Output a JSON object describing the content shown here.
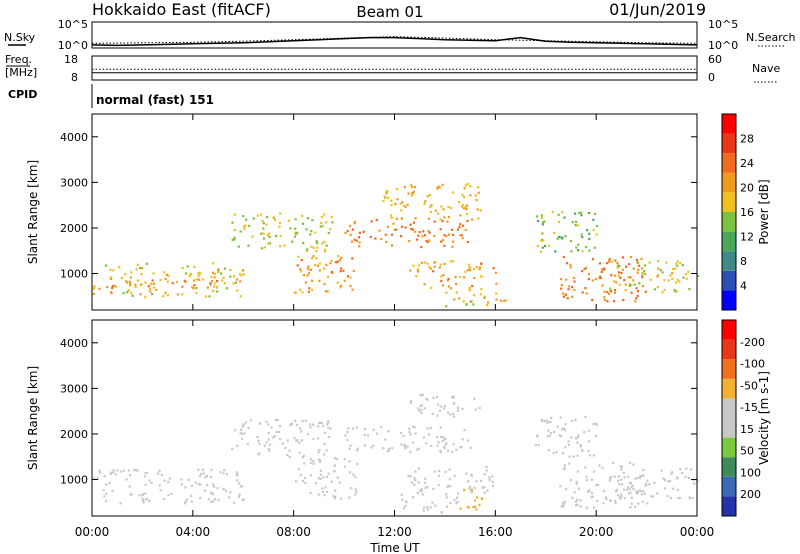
{
  "header": {
    "station": "Hokkaido East (fitACF)",
    "beam": "Beam 01",
    "date": "01/Jun/2019"
  },
  "top_labels": {
    "nsky": "N.Sky",
    "nsearch": "N.Search",
    "freq_line1": "Freq.",
    "freq_line2": "[MHz]",
    "nave": "Nave",
    "cpid": "CPID",
    "noise_tick_top": "10^5",
    "noise_tick_bottom": "10^0",
    "freq_tick_top": "18",
    "freq_tick_bottom": "8",
    "nave_tick_top": "60",
    "nave_tick_bottom": "0",
    "cpid_text": "normal (fast) 151"
  },
  "x_axis": {
    "label": "Time UT",
    "ticks": [
      "00:00",
      "04:00",
      "08:00",
      "12:00",
      "16:00",
      "20:00",
      "00:00"
    ]
  },
  "chart_data": [
    {
      "type": "line",
      "panel": "noise",
      "series": [
        {
          "name": "N.Sky",
          "x_hours": [
            0,
            1,
            2,
            3,
            4,
            5,
            6,
            7,
            8,
            9,
            10,
            11,
            12,
            13,
            14,
            15,
            16,
            17,
            18,
            19,
            20,
            21,
            22,
            23,
            24
          ],
          "values_log10": [
            0.6,
            0.5,
            0.6,
            0.7,
            0.8,
            0.9,
            1.0,
            1.2,
            1.4,
            1.6,
            1.8,
            2.0,
            2.0,
            1.8,
            1.6,
            1.5,
            1.4,
            2.0,
            1.3,
            1.1,
            1.0,
            0.9,
            0.8,
            0.7,
            0.6
          ]
        },
        {
          "name": "N.Search",
          "x_hours": [
            0,
            2,
            4,
            6,
            8,
            10,
            12,
            14,
            16,
            18,
            20,
            22,
            24
          ],
          "values_log10": [
            0.9,
            1.0,
            1.1,
            1.3,
            1.6,
            1.9,
            2.2,
            1.9,
            1.6,
            1.4,
            1.2,
            1.0,
            0.9
          ]
        }
      ],
      "ylim_log10": [
        0,
        5
      ]
    },
    {
      "type": "line",
      "panel": "freq_nave",
      "series": [
        {
          "name": "Freq.",
          "x_hours": [
            0,
            24
          ],
          "values": [
            11,
            11
          ]
        },
        {
          "name": "Nave",
          "x_hours": [
            0,
            24
          ],
          "values": [
            27,
            27
          ]
        }
      ],
      "ylim_freq": [
        8,
        18
      ],
      "ylim_nave": [
        0,
        60
      ]
    },
    {
      "type": "heatmap",
      "panel": "power",
      "xlabel": "",
      "ylabel": "Slant Range [km]",
      "xlim_hours": [
        0,
        24
      ],
      "ylim_km": [
        200,
        4500
      ],
      "yticks": [
        1000,
        2000,
        3000,
        4000
      ],
      "colorbar": {
        "label": "Power [dB]",
        "ticks": [
          4,
          8,
          12,
          16,
          20,
          24,
          28
        ],
        "colors": [
          "#0000ff",
          "#2c4fb3",
          "#3f8a86",
          "#4aa75a",
          "#7bc23f",
          "#f0c020",
          "#f09a20",
          "#f06a20",
          "#e83818",
          "#ff0000"
        ]
      },
      "regions": [
        {
          "t0": 0.0,
          "t1": 6.0,
          "r0": 500,
          "r1": 1250,
          "value": 22
        },
        {
          "t0": 0.5,
          "t1": 5.0,
          "r0": 700,
          "r1": 900,
          "value": 27
        },
        {
          "t0": 5.5,
          "t1": 9.5,
          "r0": 1500,
          "r1": 2350,
          "value": 20
        },
        {
          "t0": 8.0,
          "t1": 10.5,
          "r0": 600,
          "r1": 1500,
          "value": 26
        },
        {
          "t0": 10.0,
          "t1": 15.0,
          "r0": 1600,
          "r1": 2200,
          "value": 29
        },
        {
          "t0": 11.5,
          "t1": 15.5,
          "r0": 2200,
          "r1": 3000,
          "value": 24
        },
        {
          "t0": 12.5,
          "t1": 16.0,
          "r0": 700,
          "r1": 1300,
          "value": 25
        },
        {
          "t0": 14.0,
          "t1": 16.5,
          "r0": 300,
          "r1": 700,
          "value": 22
        },
        {
          "t0": 17.5,
          "t1": 20.0,
          "r0": 1500,
          "r1": 2400,
          "value": 18
        },
        {
          "t0": 18.5,
          "t1": 22.0,
          "r0": 400,
          "r1": 1400,
          "value": 29
        },
        {
          "t0": 20.5,
          "t1": 24.0,
          "r0": 600,
          "r1": 1300,
          "value": 21
        }
      ]
    },
    {
      "type": "heatmap",
      "panel": "velocity",
      "xlabel": "Time UT",
      "ylabel": "Slant Range [km]",
      "xlim_hours": [
        0,
        24
      ],
      "ylim_km": [
        200,
        4500
      ],
      "yticks": [
        1000,
        2000,
        3000,
        4000
      ],
      "colorbar": {
        "label": "Velocity [m s-1]",
        "ticks": [
          200,
          100,
          50,
          15,
          -15,
          -50,
          -100,
          -200
        ],
        "colors": [
          "#2233aa",
          "#3a6ab8",
          "#3d8a5a",
          "#7ac93e",
          "#c8c8c8",
          "#c8c8c8",
          "#f0b030",
          "#f07020",
          "#e83818",
          "#ff0000"
        ]
      },
      "regions": [
        {
          "t0": 0.0,
          "t1": 6.0,
          "r0": 500,
          "r1": 1250,
          "value": 0
        },
        {
          "t0": 5.5,
          "t1": 9.5,
          "r0": 1500,
          "r1": 2350,
          "value": 0
        },
        {
          "t0": 8.0,
          "t1": 10.5,
          "r0": 600,
          "r1": 1500,
          "value": 0
        },
        {
          "t0": 10.0,
          "t1": 15.0,
          "r0": 1600,
          "r1": 2200,
          "value": 0
        },
        {
          "t0": 12.5,
          "t1": 15.5,
          "r0": 2400,
          "r1": 2900,
          "value": 35
        },
        {
          "t0": 12.5,
          "t1": 16.0,
          "r0": 700,
          "r1": 1300,
          "value": 0
        },
        {
          "t0": 12.0,
          "t1": 14.5,
          "r0": 300,
          "r1": 700,
          "value": 35
        },
        {
          "t0": 14.5,
          "t1": 15.5,
          "r0": 300,
          "r1": 800,
          "value": -40
        },
        {
          "t0": 17.5,
          "t1": 20.0,
          "r0": 1500,
          "r1": 2400,
          "value": 0
        },
        {
          "t0": 18.5,
          "t1": 22.0,
          "r0": 400,
          "r1": 1400,
          "value": 0
        },
        {
          "t0": 20.5,
          "t1": 24.0,
          "r0": 600,
          "r1": 1300,
          "value": 0
        }
      ]
    }
  ]
}
